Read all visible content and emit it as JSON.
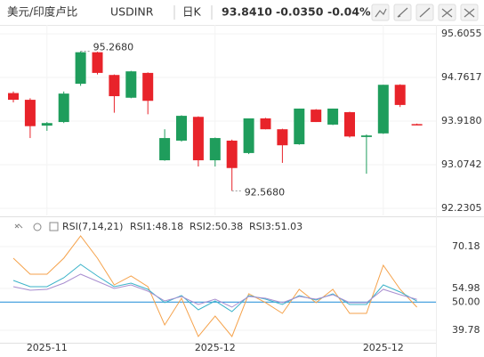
{
  "header": {
    "name": "美元/印度卢比",
    "symbol": "USDINR",
    "period": "日K",
    "price": "93.8410",
    "change": "-0.0350",
    "change_pct": "-0.04%",
    "color": "#1aa260"
  },
  "chart_data": [
    {
      "type": "candlestick",
      "categories": [
        null,
        null,
        "2025-11",
        null,
        null,
        null,
        null,
        null,
        null,
        null,
        null,
        null,
        "2025-12",
        null,
        null,
        null,
        null,
        null,
        null,
        null,
        null,
        null,
        "2025-12",
        null,
        null
      ],
      "open": [
        94.46,
        94.33,
        93.83,
        93.9,
        94.64,
        95.25,
        94.81,
        94.37,
        94.85,
        93.16,
        93.54,
        94.0,
        93.16,
        93.54,
        93.3,
        93.97,
        93.76,
        93.47,
        94.14,
        93.85,
        94.09,
        93.61,
        93.68,
        94.62,
        93.86
      ],
      "high": [
        94.49,
        94.36,
        93.9,
        94.49,
        95.268,
        95.26,
        94.82,
        94.89,
        94.86,
        93.76,
        94.03,
        94.01,
        93.6,
        93.56,
        93.97,
        93.98,
        93.77,
        94.16,
        94.15,
        94.16,
        94.1,
        93.66,
        94.62,
        94.63,
        93.87
      ],
      "low": [
        94.28,
        93.59,
        93.73,
        93.88,
        94.6,
        94.82,
        94.08,
        94.36,
        94.05,
        93.15,
        93.52,
        93.04,
        93.04,
        92.568,
        93.28,
        93.76,
        93.11,
        93.46,
        93.9,
        93.84,
        93.6,
        92.9,
        93.67,
        94.19,
        93.84
      ],
      "close": [
        94.33,
        93.82,
        93.88,
        94.45,
        95.25,
        94.85,
        94.4,
        94.88,
        94.31,
        93.59,
        94.02,
        93.16,
        93.59,
        93.01,
        93.97,
        93.76,
        93.45,
        94.16,
        93.9,
        94.16,
        93.62,
        93.64,
        94.62,
        94.23,
        93.841
      ],
      "up_color": "#1f9d5c",
      "down_color": "#e8232a",
      "ylim": [
        92.093,
        95.778
      ],
      "yticks": [
        95.6055,
        94.7617,
        {
          "value": 93.918,
          "label": "93.9180"
        },
        93.0742,
        92.2305
      ],
      "ytick_colors": [
        "#e8232a",
        "#e8232a",
        "#e8232a",
        "#1f9d5c",
        "#1f9d5c"
      ],
      "annotations": [
        {
          "value": 95.268,
          "label": "95.2680"
        },
        {
          "value": 92.568,
          "label": "92.5680"
        }
      ],
      "grid": true
    },
    {
      "type": "line",
      "title": "RSI(7,14,21)",
      "series": [
        {
          "name": "RSI1:48.18",
          "color": "#f5a24b",
          "values": [
            65.98,
            60.16,
            60.16,
            65.98,
            74.06,
            65.98,
            56.27,
            59.51,
            55.63,
            41.72,
            51.42,
            37.52,
            44.95,
            37.52,
            53.04,
            49.81,
            45.92,
            54.66,
            49.81,
            54.66,
            45.92,
            45.92,
            63.39,
            54.66,
            48.18
          ]
        },
        {
          "name": "RSI2:50.38",
          "color": "#3bb3c9",
          "values": [
            57.89,
            55.63,
            55.63,
            58.86,
            63.71,
            59.51,
            55.63,
            56.92,
            54.66,
            49.81,
            52.39,
            47.22,
            50.45,
            46.57,
            52.39,
            51.1,
            49.16,
            52.39,
            50.78,
            53.04,
            49.16,
            49.16,
            56.27,
            53.69,
            50.38
          ]
        },
        {
          "name": "RSI3:51.03",
          "color": "#a98fd0",
          "values": [
            55.63,
            54.33,
            54.66,
            56.92,
            60.16,
            57.57,
            54.98,
            56.27,
            54.01,
            50.45,
            52.07,
            49.16,
            51.1,
            48.19,
            52.07,
            51.42,
            49.81,
            52.07,
            51.1,
            52.72,
            49.81,
            49.81,
            54.66,
            52.72,
            51.03
          ]
        }
      ],
      "ylim": [
        35.25,
        75.03
      ],
      "yticks": [
        70.18,
        54.98,
        39.78
      ],
      "reference_line": {
        "value": 50,
        "label": "50.00",
        "color": "#4aa3df"
      },
      "grid": true
    }
  ]
}
